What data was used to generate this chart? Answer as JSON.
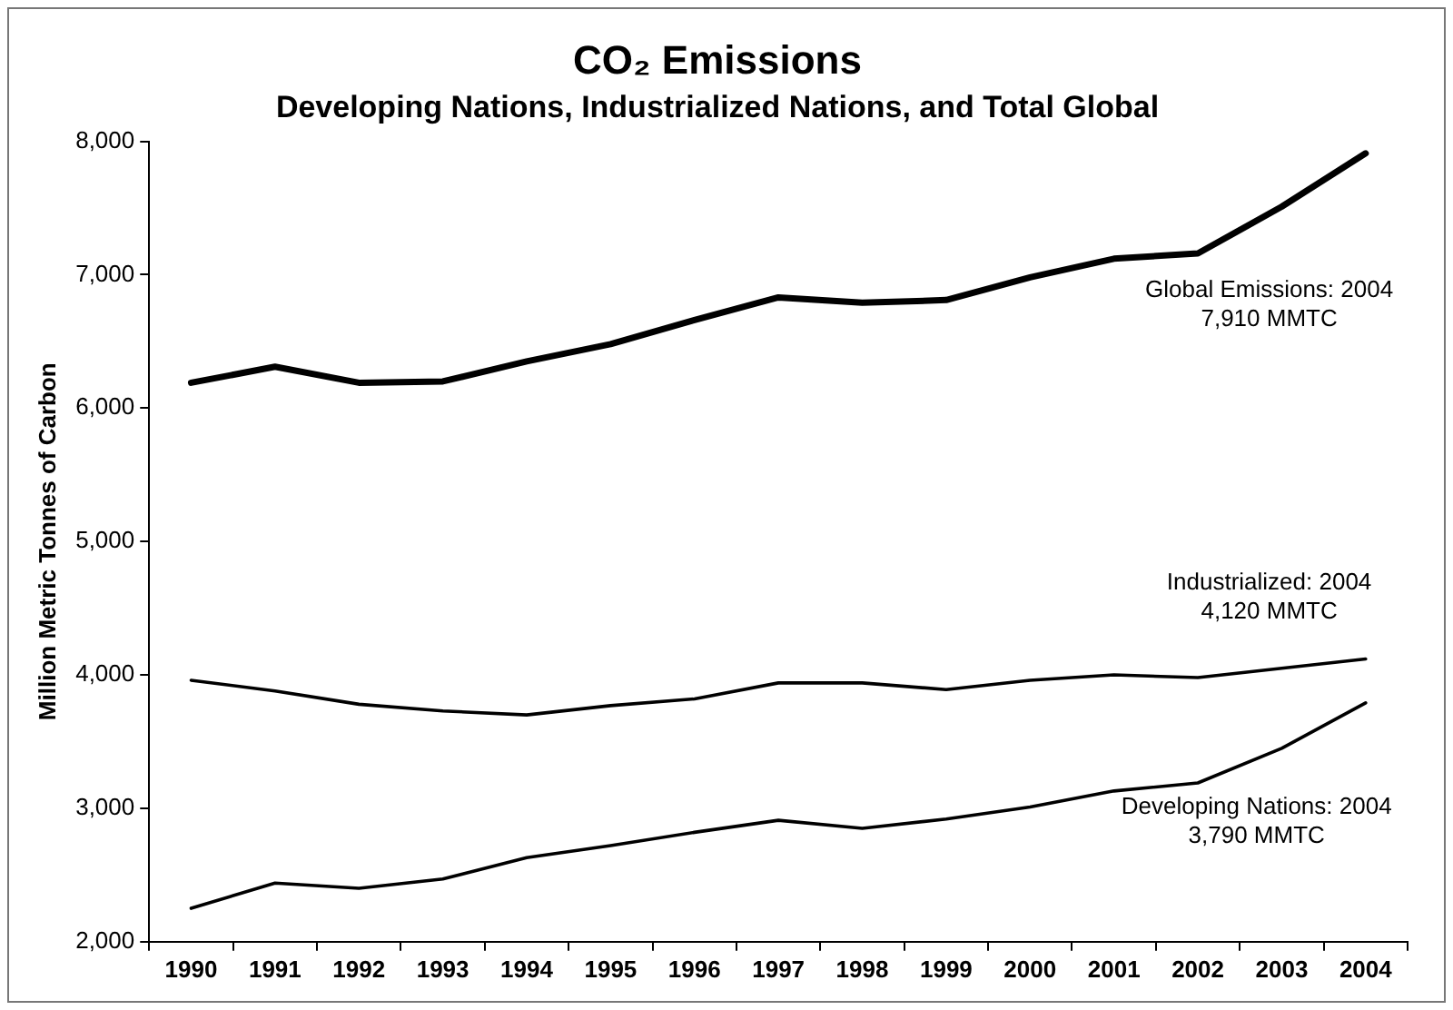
{
  "chart_data": {
    "type": "line",
    "title": "CO₂ Emissions",
    "subtitle": "Developing Nations, Industrialized Nations, and Total Global",
    "ylabel": "Million Metric Tonnes of Carbon",
    "categories": [
      "1990",
      "1991",
      "1992",
      "1993",
      "1994",
      "1995",
      "1996",
      "1997",
      "1998",
      "1999",
      "2000",
      "2001",
      "2002",
      "2003",
      "2004"
    ],
    "series": [
      {
        "color": "#000000",
        "values": [
          6190,
          6310,
          6190,
          6200,
          6350,
          6480,
          6660,
          6830,
          6790,
          6810,
          6980,
          7120,
          7160,
          7510,
          7910
        ]
      },
      {
        "color": "#000000",
        "values": [
          3960,
          3880,
          3780,
          3730,
          3700,
          3770,
          3820,
          3940,
          3940,
          3890,
          3960,
          4000,
          3980,
          4050,
          4120
        ]
      },
      {
        "color": "#000000",
        "values": [
          2250,
          2440,
          2400,
          2470,
          2630,
          2720,
          2820,
          2910,
          2850,
          2920,
          3010,
          3130,
          3190,
          3450,
          3790
        ]
      }
    ],
    "ylim": [
      2000,
      8000
    ],
    "yticks": [
      {
        "value": 2000,
        "label": "2,000"
      },
      {
        "value": 3000,
        "label": "3,000"
      },
      {
        "value": 4000,
        "label": "4,000"
      },
      {
        "value": 5000,
        "label": "5,000"
      },
      {
        "value": 6000,
        "label": "6,000"
      },
      {
        "value": 7000,
        "label": "7,000"
      },
      {
        "value": 8000,
        "label": "8,000"
      }
    ],
    "grid": false,
    "legend": false,
    "marker": "none",
    "line_style": "solid",
    "annotations": [
      "Global Emissions: 2004\n7,910 MMTC",
      "Industrialized: 2004\n4,120 MMTC",
      "Developing Nations: 2004\n3,790 MMTC"
    ]
  }
}
